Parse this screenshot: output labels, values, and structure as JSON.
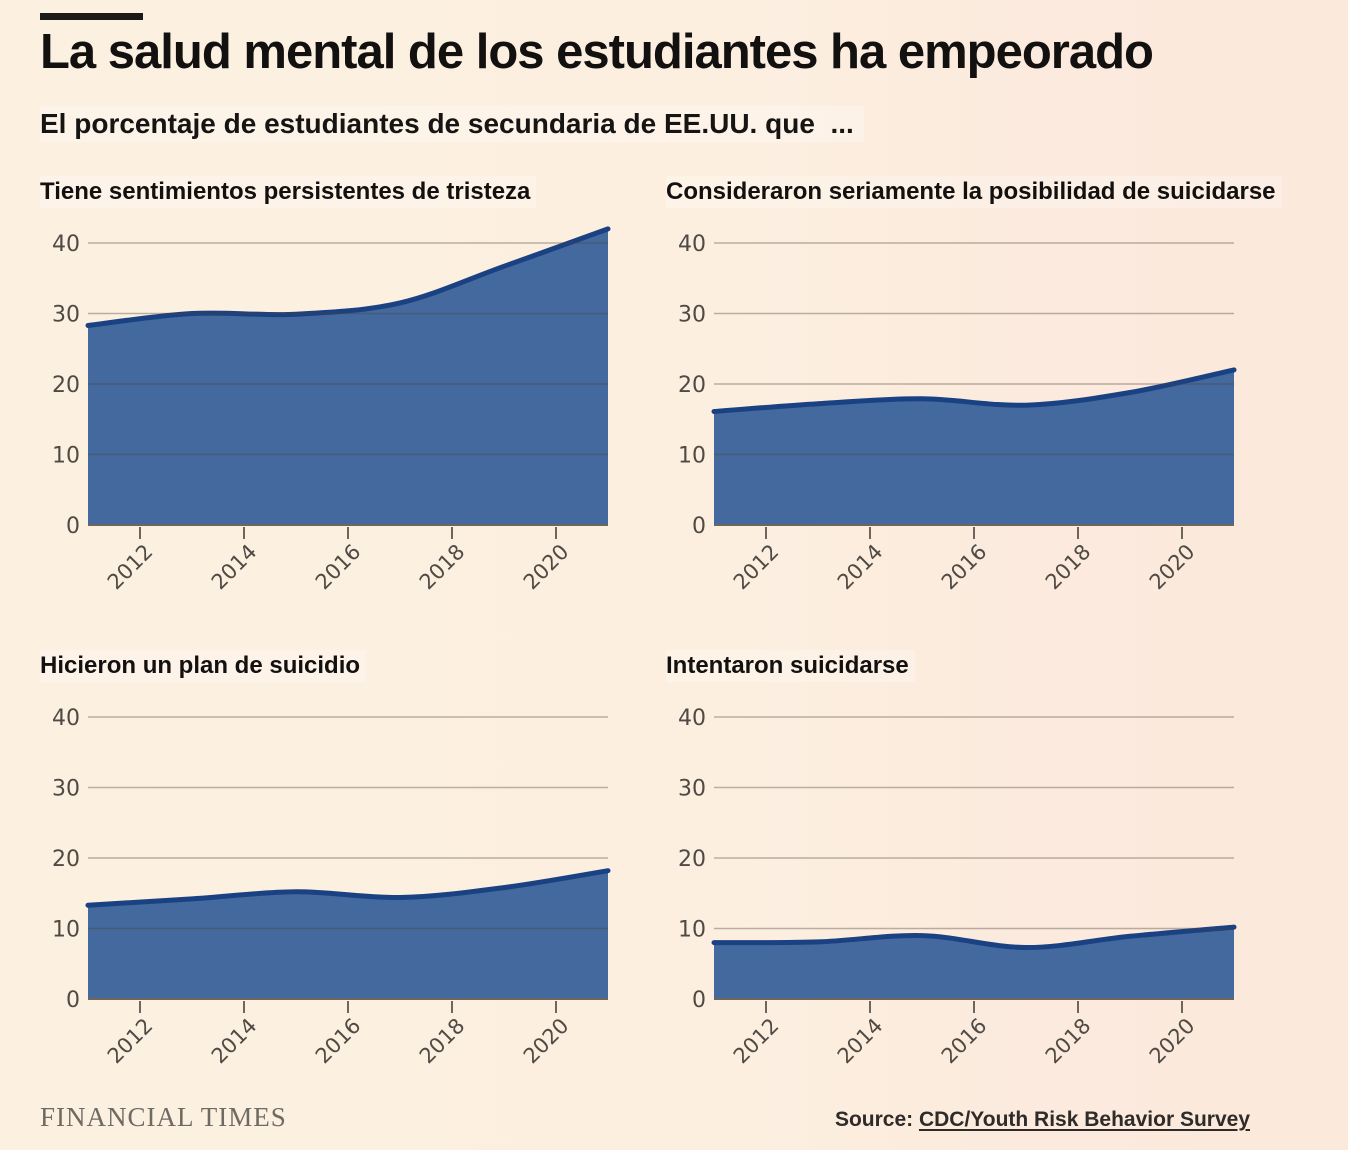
{
  "page": {
    "background": "#fcefe0"
  },
  "header": {
    "title": "La salud mental de los estudiantes ha empeorado",
    "subtitle": "El porcentaje de estudiantes de secundaria de EE.UU. que  ..."
  },
  "colors": {
    "area_fill": "#44699F",
    "area_line": "#1A4282",
    "gridline": "rgba(80,66,52,0.38)",
    "axis": "#6E655B",
    "tick_label": "#4F4A44"
  },
  "charts": [
    {
      "title": "Tiene sentimientos persistentes de tristeza",
      "chart_data": {
        "type": "area",
        "x": [
          2011,
          2013,
          2015,
          2017,
          2019,
          2021
        ],
        "values": [
          28.3,
          30.0,
          29.9,
          31.5,
          36.7,
          42.0
        ],
        "unit": "%",
        "ylim": [
          0,
          44
        ],
        "yticks": [
          0,
          10,
          20,
          30,
          40
        ],
        "xticks": [
          2012,
          2014,
          2016,
          2018,
          2020
        ],
        "grid": true,
        "legend": "none"
      }
    },
    {
      "title": "Consideraron seriamente la posibilidad de suicidarse",
      "chart_data": {
        "type": "area",
        "x": [
          2011,
          2013,
          2015,
          2017,
          2019,
          2021
        ],
        "values": [
          16.1,
          17.2,
          17.9,
          17.0,
          18.8,
          22.0
        ],
        "unit": "%",
        "ylim": [
          0,
          44
        ],
        "yticks": [
          0,
          10,
          20,
          30,
          40
        ],
        "xticks": [
          2012,
          2014,
          2016,
          2018,
          2020
        ],
        "grid": true,
        "legend": "none"
      }
    },
    {
      "title": "Hicieron un plan de suicidio",
      "chart_data": {
        "type": "area",
        "x": [
          2011,
          2013,
          2015,
          2017,
          2019,
          2021
        ],
        "values": [
          13.3,
          14.2,
          15.2,
          14.4,
          15.8,
          18.2
        ],
        "unit": "%",
        "ylim": [
          0,
          44
        ],
        "yticks": [
          0,
          10,
          20,
          30,
          40
        ],
        "xticks": [
          2012,
          2014,
          2016,
          2018,
          2020
        ],
        "grid": true,
        "legend": "none"
      }
    },
    {
      "title": "Intentaron suicidarse",
      "chart_data": {
        "type": "area",
        "x": [
          2011,
          2013,
          2015,
          2017,
          2019,
          2021
        ],
        "values": [
          8.0,
          8.1,
          9.0,
          7.3,
          8.9,
          10.2
        ],
        "unit": "%",
        "ylim": [
          0,
          44
        ],
        "yticks": [
          0,
          10,
          20,
          30,
          40
        ],
        "xticks": [
          2012,
          2014,
          2016,
          2018,
          2020
        ],
        "grid": true,
        "legend": "none"
      }
    }
  ],
  "footer": {
    "brand": "FINANCIAL TIMES",
    "source_prefix": "Source: ",
    "source_link": "CDC/Youth Risk Behavior Survey"
  }
}
